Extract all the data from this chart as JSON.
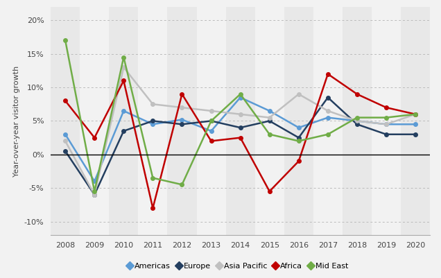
{
  "years": [
    2008,
    2009,
    2010,
    2011,
    2012,
    2013,
    2014,
    2015,
    2016,
    2017,
    2018,
    2019,
    2020
  ],
  "series": {
    "Americas": [
      3.0,
      -4.0,
      6.5,
      4.5,
      5.2,
      3.5,
      8.5,
      6.5,
      4.0,
      5.5,
      5.0,
      4.5,
      4.5
    ],
    "Europe": [
      0.5,
      -6.0,
      3.5,
      5.0,
      4.5,
      5.0,
      4.0,
      5.0,
      2.5,
      8.5,
      4.5,
      3.0,
      3.0
    ],
    "Asia Pacific": [
      2.0,
      -6.0,
      13.0,
      7.5,
      7.0,
      6.5,
      6.0,
      5.5,
      9.0,
      6.5,
      5.0,
      4.5,
      6.0
    ],
    "Africa": [
      8.0,
      2.5,
      11.0,
      -8.0,
      9.0,
      2.0,
      2.5,
      -5.5,
      -1.0,
      12.0,
      9.0,
      7.0,
      6.0
    ],
    "Mid East": [
      17.0,
      -5.5,
      14.5,
      -3.5,
      -4.5,
      5.0,
      9.0,
      3.0,
      2.0,
      3.0,
      5.5,
      5.5,
      6.0
    ]
  },
  "colors": {
    "Americas": "#5B9BD5",
    "Europe": "#243F60",
    "Asia Pacific": "#C0C0C0",
    "Africa": "#C00000",
    "Mid East": "#70AD47"
  },
  "markers": {
    "Americas": "o",
    "Europe": "o",
    "Asia Pacific": "o",
    "Africa": "o",
    "Mid East": "o"
  },
  "ylabel": "Year-over-year visitor growth",
  "ylim": [
    -12,
    22
  ],
  "yticks": [
    -10,
    -5,
    0,
    5,
    10,
    15,
    20
  ],
  "background_color": "#f2f2f2",
  "col_colors": [
    "#e8e8e8",
    "#f2f2f2"
  ]
}
